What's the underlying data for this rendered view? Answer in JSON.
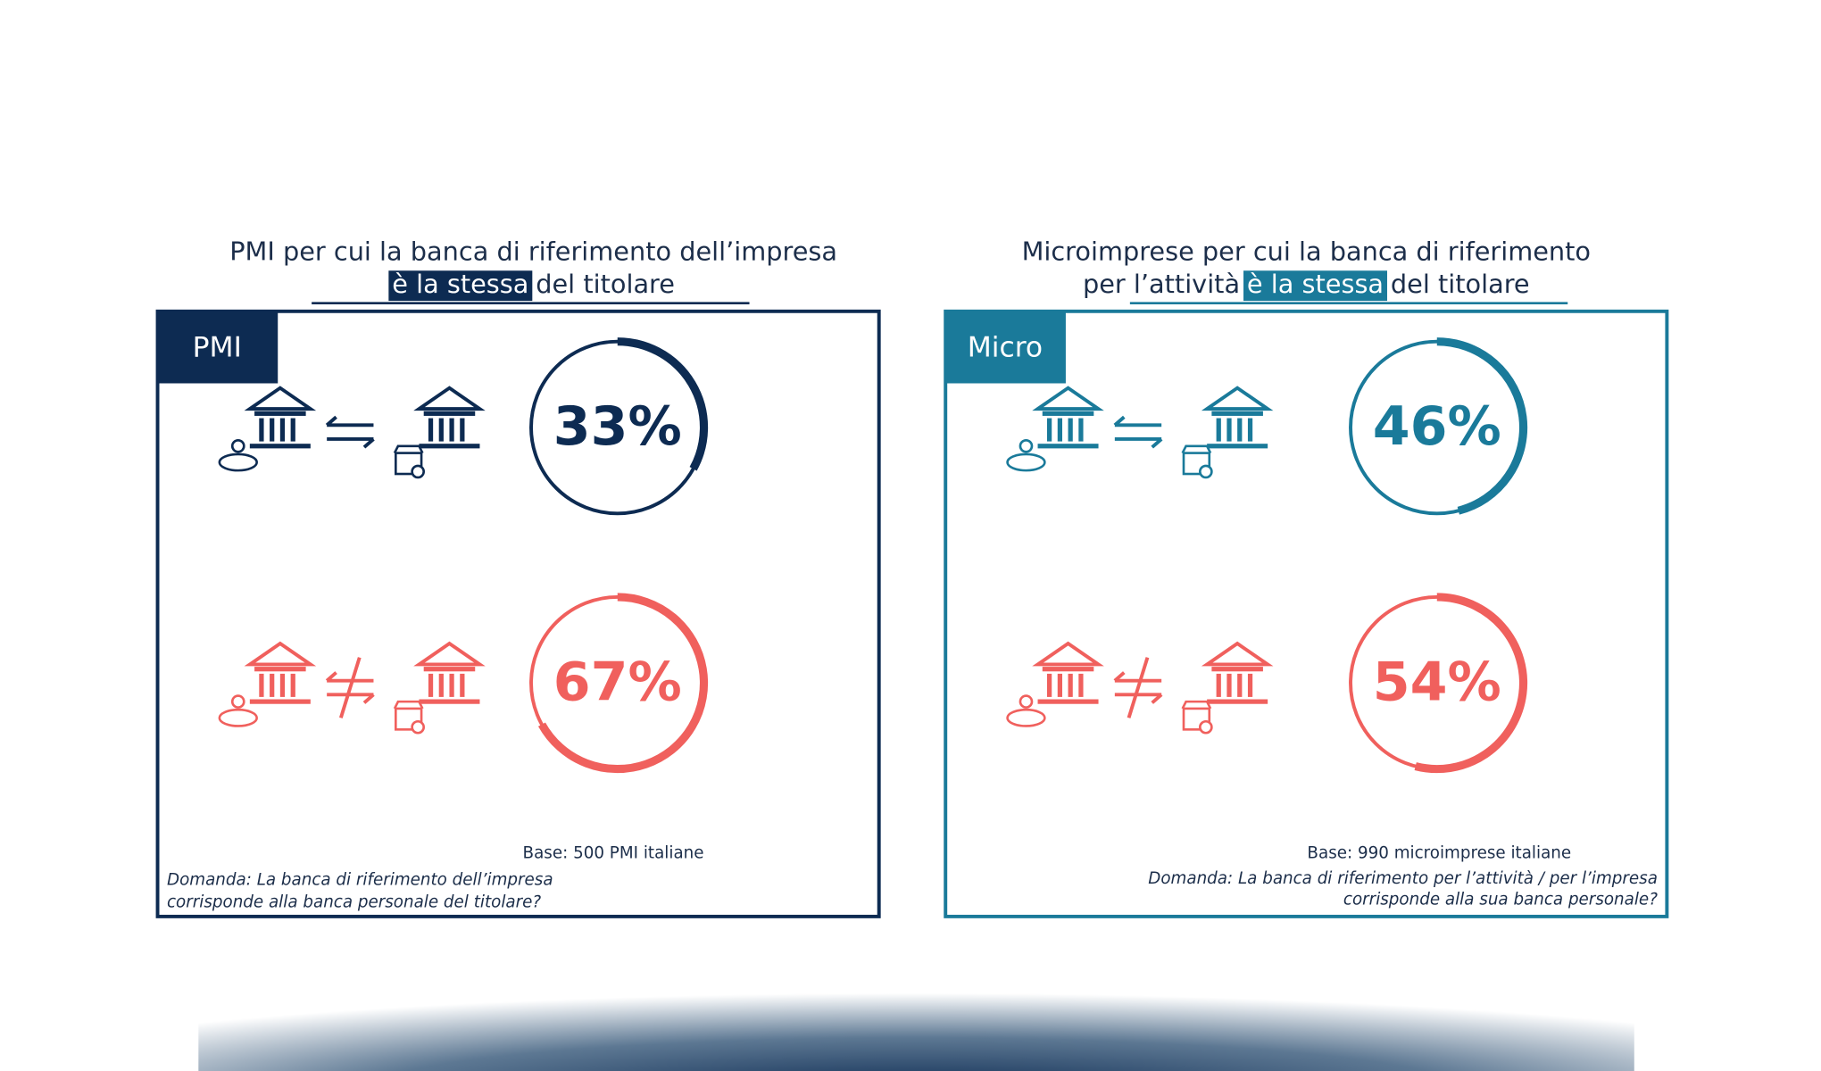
{
  "chart_data": [
    {
      "type": "donut",
      "title": "PMI per cui la banca di riferimento dell’impresa",
      "highlight": "è la stessa",
      "title_end": "del titolare",
      "tab": "PMI",
      "color": "#0d2b52",
      "colors": [
        "#0d2b52",
        "#f0605d"
      ],
      "values": [
        33,
        67
      ],
      "value_labels": [
        "33%",
        "67%"
      ],
      "base": "Base: 500 PMI italiane",
      "question": [
        "Domanda: La banca di riferimento dell’impresa",
        "corrisponde alla banca personale del titolare?"
      ]
    },
    {
      "type": "donut",
      "title": "Microimprese per cui la banca di riferimento",
      "title_prefix": "per l’attività",
      "highlight": "è la stessa",
      "title_end": "del titolare",
      "tab": "Micro",
      "color": "#1a7a9a",
      "colors": [
        "#1a7a9a",
        "#f0605d"
      ],
      "values": [
        46,
        54
      ],
      "value_labels": [
        "46%",
        "54%"
      ],
      "base": "Base: 990 microimprese italiane",
      "question": [
        "Domanda: La banca di riferimento per l’attività / per l’impresa",
        "corrisponde alla sua banca personale?"
      ]
    }
  ]
}
